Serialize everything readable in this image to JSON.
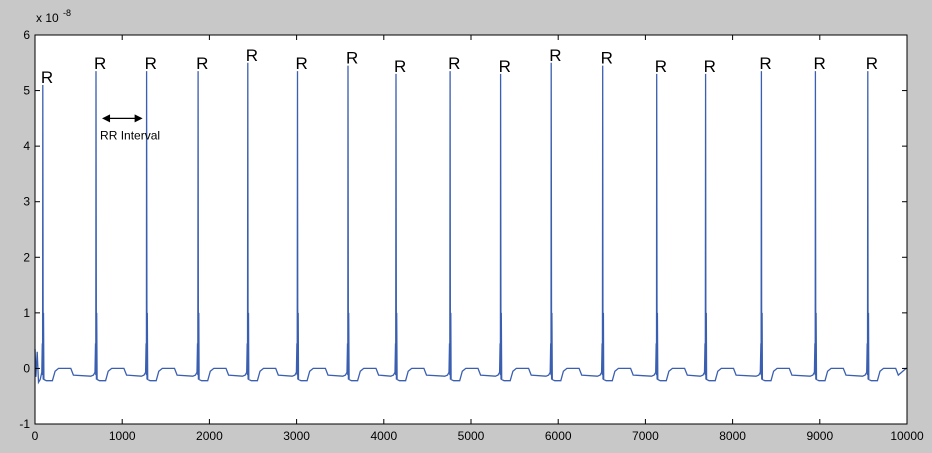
{
  "chart_data": {
    "type": "line",
    "title": "",
    "xlabel": "",
    "ylabel": "",
    "y_exponent_label": "x 10",
    "y_exponent_power": "-8",
    "xlim": [
      0,
      10000
    ],
    "ylim": [
      -1,
      6
    ],
    "x_ticks": [
      "0",
      "1000",
      "2000",
      "3000",
      "4000",
      "5000",
      "6000",
      "7000",
      "8000",
      "9000",
      "10000"
    ],
    "y_ticks": [
      "-1",
      "0",
      "1",
      "2",
      "3",
      "4",
      "5",
      "6"
    ],
    "grid": false,
    "line_color": "#3b5fb0",
    "baseline": -0.12,
    "peaks": [
      {
        "x": 90,
        "y": 5.1,
        "label": "R"
      },
      {
        "x": 700,
        "y": 5.35,
        "label": "R"
      },
      {
        "x": 1280,
        "y": 5.35,
        "label": "R"
      },
      {
        "x": 1870,
        "y": 5.35,
        "label": "R"
      },
      {
        "x": 2440,
        "y": 5.5,
        "label": "R"
      },
      {
        "x": 3010,
        "y": 5.35,
        "label": "R"
      },
      {
        "x": 3590,
        "y": 5.45,
        "label": "R"
      },
      {
        "x": 4140,
        "y": 5.3,
        "label": "R"
      },
      {
        "x": 4760,
        "y": 5.35,
        "label": "R"
      },
      {
        "x": 5340,
        "y": 5.3,
        "label": "R"
      },
      {
        "x": 5920,
        "y": 5.5,
        "label": "R"
      },
      {
        "x": 6510,
        "y": 5.45,
        "label": "R"
      },
      {
        "x": 7130,
        "y": 5.3,
        "label": "R"
      },
      {
        "x": 7690,
        "y": 5.3,
        "label": "R"
      },
      {
        "x": 8330,
        "y": 5.35,
        "label": "R"
      },
      {
        "x": 8950,
        "y": 5.35,
        "label": "R"
      },
      {
        "x": 9550,
        "y": 5.35,
        "label": "R"
      }
    ],
    "annotation": {
      "text": "RR Interval",
      "x_start": 700,
      "x_end": 1280,
      "y": 4.5
    }
  }
}
